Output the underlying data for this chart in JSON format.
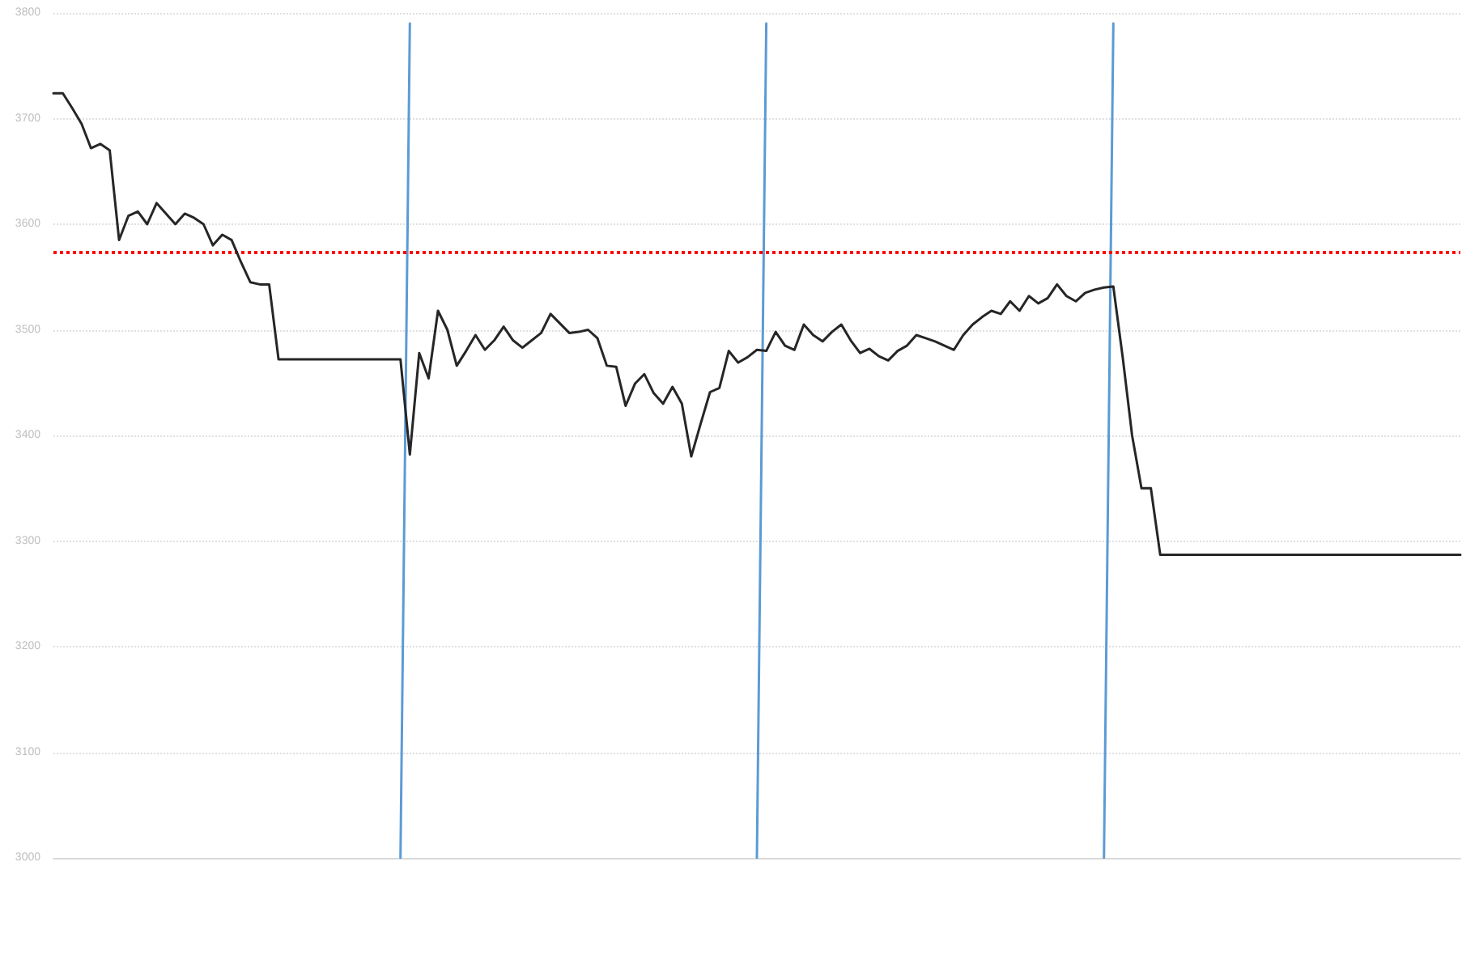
{
  "chart_data": {
    "type": "line",
    "categories": [
      null,
      null,
      null,
      null,
      null,
      null,
      null,
      null,
      null,
      null,
      null,
      null,
      null,
      null,
      null,
      null,
      null,
      null,
      null,
      null,
      null,
      null,
      null,
      null,
      null,
      null,
      null,
      null,
      null,
      null,
      null,
      null,
      null,
      null,
      null,
      null,
      null,
      null,
      null,
      null,
      null,
      null,
      null,
      null,
      null,
      null,
      null,
      null,
      null,
      null,
      null,
      null,
      null,
      null,
      null,
      null,
      null,
      null,
      null,
      null,
      null,
      null,
      null,
      null,
      null,
      null,
      null,
      null,
      null,
      null,
      null,
      null,
      null,
      null,
      null,
      null,
      null,
      null,
      null,
      null,
      null,
      null,
      null,
      null,
      null,
      null,
      null,
      null,
      null,
      null,
      null,
      null,
      null,
      null,
      null,
      null,
      null,
      null,
      null,
      null,
      null,
      null,
      null,
      null,
      null,
      null,
      null,
      null,
      null,
      null,
      null,
      null,
      null,
      null,
      null,
      null,
      null,
      null,
      null,
      null,
      null,
      null,
      null,
      null,
      null,
      null,
      null,
      null,
      null,
      null,
      null,
      null,
      null,
      null,
      null,
      null,
      null,
      null,
      null,
      null,
      null,
      null,
      null,
      null,
      null,
      null,
      null,
      null,
      null,
      null,
      null
    ],
    "series": [
      {
        "color": "#262626",
        "values": [
          3724,
          3724,
          3710,
          3695,
          3672,
          3676,
          3670,
          3585,
          3608,
          3612,
          3600,
          3620,
          3610,
          3600,
          3610,
          3606,
          3600,
          3580,
          3590,
          3585,
          3564,
          3545,
          3543,
          3543,
          3472,
          3472,
          3472,
          3472,
          3472,
          3472,
          3472,
          3472,
          3472,
          3472,
          3472,
          3472,
          3472,
          3472,
          3382,
          3478,
          3454,
          3518,
          3500,
          3466,
          3480,
          3495,
          3481,
          3490,
          3503,
          3490,
          3483,
          3490,
          3497,
          3515,
          3506,
          3497,
          3498,
          3500,
          3492,
          3466,
          3465,
          3428,
          3449,
          3458,
          3440,
          3430,
          3446,
          3430,
          3380,
          3411,
          3441,
          3445,
          3480,
          3469,
          3474,
          3481,
          3480,
          3498,
          3485,
          3481,
          3505,
          3495,
          3489,
          3498,
          3505,
          3490,
          3478,
          3482,
          3475,
          3471,
          3480,
          3485,
          3495,
          3492,
          3489,
          3485,
          3481,
          3495,
          3505,
          3512,
          3518,
          3515,
          3527,
          3518,
          3532,
          3525,
          3530,
          3543,
          3532,
          3527,
          3535,
          3538,
          3540,
          3541,
          3474,
          3400,
          3350,
          3350,
          3287,
          3287,
          3287,
          3287,
          3287,
          3287,
          3287,
          3287,
          3287,
          3287,
          3287,
          3287,
          3287,
          3287,
          3287,
          3287,
          3287,
          3287,
          3287,
          3287,
          3287,
          3287,
          3287,
          3287,
          3287,
          3287,
          3287,
          3287,
          3287,
          3287,
          3287,
          3287,
          3287
        ]
      },
      {
        "color": "#5b9bd5",
        "values": [
          null,
          null,
          null,
          null,
          null,
          null,
          null,
          null,
          null,
          null,
          null,
          null,
          null,
          null,
          null,
          null,
          null,
          null,
          null,
          null,
          null,
          null,
          null,
          null,
          null,
          null,
          null,
          null,
          null,
          null,
          null,
          null,
          null,
          null,
          null,
          null,
          null,
          3000,
          3790,
          null,
          null,
          null,
          null,
          null,
          null,
          null,
          null,
          null,
          null,
          null,
          null,
          null,
          null,
          null,
          null,
          null,
          null,
          null,
          null,
          null,
          null,
          null,
          null,
          null,
          null,
          null,
          null,
          null,
          null,
          null,
          null,
          null,
          null,
          null,
          null,
          null,
          null,
          null,
          null,
          null,
          null,
          null,
          null,
          null,
          null,
          null,
          null,
          null,
          null,
          null,
          null,
          null,
          null,
          null,
          null,
          null,
          null,
          null,
          null,
          null,
          null,
          null,
          null,
          null,
          null,
          null,
          null,
          null,
          null,
          null,
          null,
          null,
          null,
          null,
          null,
          null,
          null,
          null,
          null,
          null,
          null,
          null,
          null,
          null,
          null,
          null,
          null,
          null,
          null,
          null,
          null,
          null,
          null,
          null,
          null,
          null,
          null,
          null,
          null,
          null,
          null,
          null,
          null,
          null,
          null,
          null,
          null,
          null,
          null,
          null,
          null
        ]
      },
      {
        "color": "#5b9bd5",
        "values": [
          null,
          null,
          null,
          null,
          null,
          null,
          null,
          null,
          null,
          null,
          null,
          null,
          null,
          null,
          null,
          null,
          null,
          null,
          null,
          null,
          null,
          null,
          null,
          null,
          null,
          null,
          null,
          null,
          null,
          null,
          null,
          null,
          null,
          null,
          null,
          null,
          null,
          null,
          null,
          null,
          null,
          null,
          null,
          null,
          null,
          null,
          null,
          null,
          null,
          null,
          null,
          null,
          null,
          null,
          null,
          null,
          null,
          null,
          null,
          null,
          null,
          null,
          null,
          null,
          null,
          null,
          null,
          null,
          null,
          null,
          null,
          null,
          null,
          null,
          null,
          3000,
          3790,
          null,
          null,
          null,
          null,
          null,
          null,
          null,
          null,
          null,
          null,
          null,
          null,
          null,
          null,
          null,
          null,
          null,
          null,
          null,
          null,
          null,
          null,
          null,
          null,
          null,
          null,
          null,
          null,
          null,
          null,
          null,
          null,
          null,
          null,
          null,
          null,
          null,
          null,
          null,
          null,
          null,
          null,
          null,
          null,
          null,
          null,
          null,
          null,
          null,
          null,
          null,
          null,
          null,
          null,
          null,
          null,
          null,
          null,
          null,
          null,
          null,
          null,
          null,
          null,
          null,
          null,
          null,
          null,
          null,
          null,
          null,
          null,
          null,
          null
        ]
      },
      {
        "color": "#5b9bd5",
        "values": [
          null,
          null,
          null,
          null,
          null,
          null,
          null,
          null,
          null,
          null,
          null,
          null,
          null,
          null,
          null,
          null,
          null,
          null,
          null,
          null,
          null,
          null,
          null,
          null,
          null,
          null,
          null,
          null,
          null,
          null,
          null,
          null,
          null,
          null,
          null,
          null,
          null,
          null,
          null,
          null,
          null,
          null,
          null,
          null,
          null,
          null,
          null,
          null,
          null,
          null,
          null,
          null,
          null,
          null,
          null,
          null,
          null,
          null,
          null,
          null,
          null,
          null,
          null,
          null,
          null,
          null,
          null,
          null,
          null,
          null,
          null,
          null,
          null,
          null,
          null,
          null,
          null,
          null,
          null,
          null,
          null,
          null,
          null,
          null,
          null,
          null,
          null,
          null,
          null,
          null,
          null,
          null,
          null,
          null,
          null,
          null,
          null,
          null,
          null,
          null,
          null,
          null,
          null,
          null,
          null,
          null,
          null,
          null,
          null,
          null,
          null,
          null,
          3000,
          3790,
          null,
          null,
          null,
          null,
          null,
          null,
          null,
          null,
          null,
          null,
          null,
          null,
          null,
          null,
          null,
          null,
          null,
          null,
          null,
          null,
          null,
          null,
          null,
          null,
          null,
          null,
          null,
          null,
          null,
          null,
          null,
          null,
          null,
          null,
          null,
          null,
          null
        ]
      }
    ],
    "ylim": [
      3000,
      3800
    ],
    "yticks": [
      3000,
      3100,
      3200,
      3300,
      3400,
      3500,
      3600,
      3700,
      3800
    ],
    "grid": "y",
    "marker": "none",
    "line_style": "solid",
    "ref_lines": [
      {
        "axis": "y",
        "value": 3574,
        "color": "#ff0000",
        "line_style": "dotted"
      }
    ]
  }
}
